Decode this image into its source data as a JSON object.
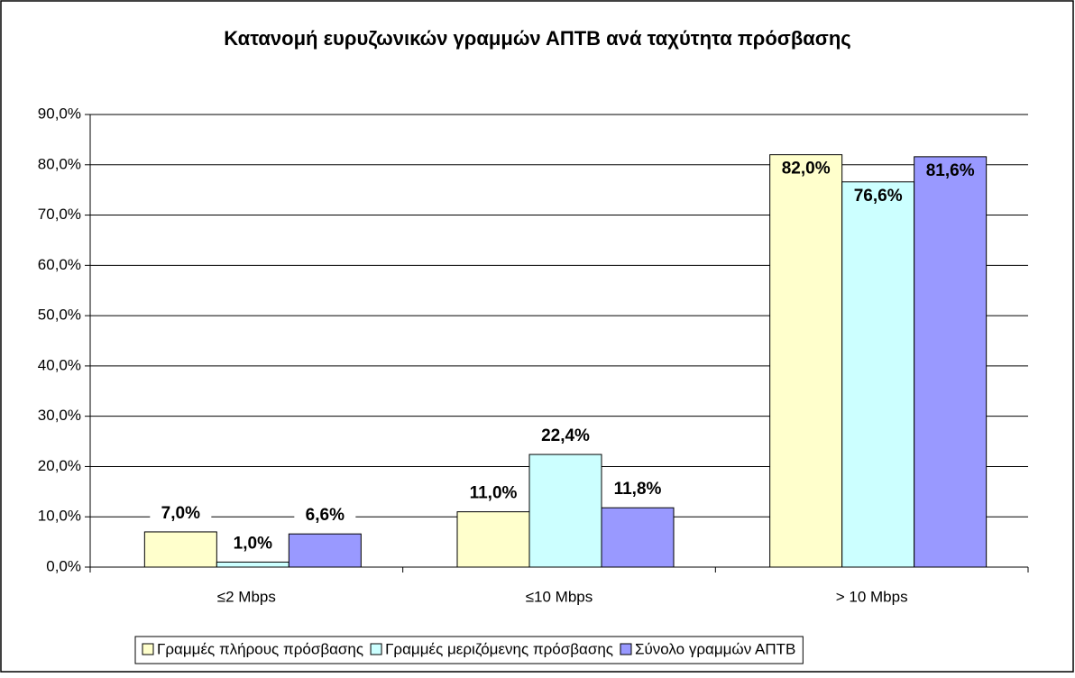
{
  "chart_data": {
    "type": "bar",
    "title": "Κατανομή ευρυζωνικών γραμμών ΑΠΤΒ ανά ταχύτητα πρόσβασης",
    "categories": [
      "≤2 Mbps",
      "≤10 Mbps",
      "> 10 Mbps"
    ],
    "series": [
      {
        "name": "Γραμμές πλήρους πρόσβασης",
        "color": "#ffffcc",
        "values": [
          7.0,
          11.0,
          82.0
        ],
        "value_labels": [
          "7,0%",
          "11,0%",
          "82,0%"
        ]
      },
      {
        "name": "Γραμμές μεριζόμενης πρόσβασης",
        "color": "#ccffff",
        "values": [
          1.0,
          22.4,
          76.6
        ],
        "value_labels": [
          "1,0%",
          "22,4%",
          "76,6%"
        ]
      },
      {
        "name": "Σύνολο γραμμών ΑΠΤΒ",
        "color": "#9999ff",
        "values": [
          6.6,
          11.8,
          81.6
        ],
        "value_labels": [
          "6,6%",
          "11,8%",
          "81,6%"
        ]
      }
    ],
    "ylim": [
      0,
      90
    ],
    "yticks": [
      {
        "value": 0,
        "label": "0,0%"
      },
      {
        "value": 10,
        "label": "10,0%"
      },
      {
        "value": 20,
        "label": "20,0%"
      },
      {
        "value": 30,
        "label": "30,0%"
      },
      {
        "value": 40,
        "label": "40,0%"
      },
      {
        "value": 50,
        "label": "50,0%"
      },
      {
        "value": 60,
        "label": "60,0%"
      },
      {
        "value": 70,
        "label": "70,0%"
      },
      {
        "value": 80,
        "label": "80,0%"
      },
      {
        "value": 90,
        "label": "90,0%"
      }
    ],
    "grid": true,
    "legend": "bottom"
  }
}
